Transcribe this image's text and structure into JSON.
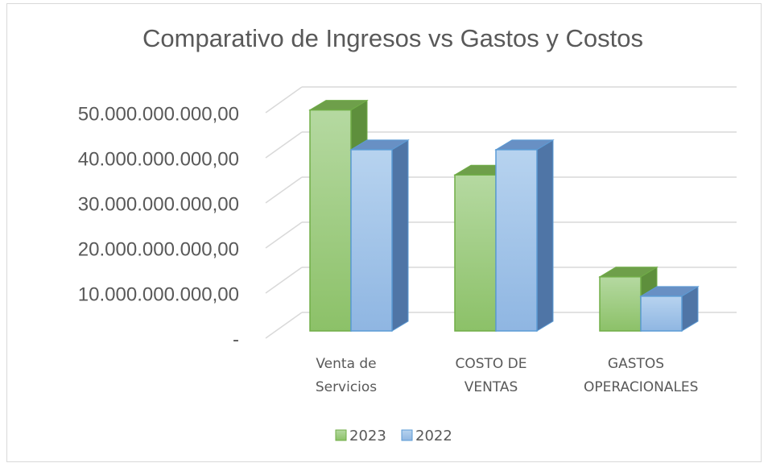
{
  "chart_data": {
    "type": "bar3d",
    "title": "Comparativo de Ingresos vs Gastos y Costos",
    "categories": [
      "Venta de Servicios",
      "COSTO DE VENTAS",
      "GASTOS OPERACIONALES"
    ],
    "series": [
      {
        "name": "2023",
        "color": "#70ad47",
        "values": [
          49000000000,
          34600000000,
          12000000000
        ]
      },
      {
        "name": "2022",
        "color": "#5b9bd5",
        "values": [
          40200000000,
          40200000000,
          7700000000
        ]
      }
    ],
    "ylim": [
      0,
      50000000000
    ],
    "yticks": [
      {
        "value": 0,
        "label": "-"
      },
      {
        "value": 10000000000,
        "label": "10.000.000.000,00"
      },
      {
        "value": 20000000000,
        "label": "20.000.000.000,00"
      },
      {
        "value": 30000000000,
        "label": "30.000.000.000,00"
      },
      {
        "value": 40000000000,
        "label": "40.000.000.000,00"
      },
      {
        "value": 50000000000,
        "label": "50.000.000.000,00"
      }
    ],
    "grid": true,
    "legend": "bottom"
  }
}
